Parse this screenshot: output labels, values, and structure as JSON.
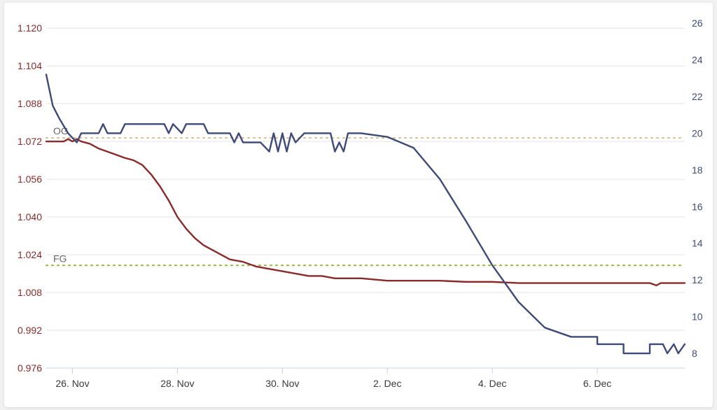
{
  "chart_data": {
    "type": "line",
    "x_axis": {
      "type": "date",
      "range": [
        "2023-11-25T12:00",
        "2023-12-07T16:00"
      ],
      "tick_labels": [
        "26. Nov",
        "28. Nov",
        "30. Nov",
        "2. Dec",
        "4. Dec",
        "6. Dec"
      ],
      "tick_dates": [
        "2023-11-26",
        "2023-11-28",
        "2023-11-30",
        "2023-12-02",
        "2023-12-04",
        "2023-12-06"
      ]
    },
    "y_left": {
      "range": [
        0.976,
        1.126
      ],
      "ticks": [
        "0.976",
        "0.992",
        "1.008",
        "1.024",
        "1.040",
        "1.056",
        "1.072",
        "1.088",
        "1.104",
        "1.120"
      ],
      "color": "#8b2a2a"
    },
    "y_right": {
      "range": [
        7.2,
        26.5
      ],
      "ticks": [
        "8",
        "10",
        "12",
        "14",
        "16",
        "18",
        "20",
        "22",
        "24",
        "26"
      ],
      "color": "#3f4a78"
    },
    "grid": true,
    "annotations": [
      {
        "label": "OG",
        "value": 1.0735,
        "axis": "left",
        "color": "#d4b98a"
      },
      {
        "label": "FG",
        "value": 1.0195,
        "axis": "left",
        "color": "#8fae3c"
      }
    ],
    "series": [
      {
        "axis": "left",
        "color": "#8b2a2a",
        "points": [
          [
            "2023-11-25T12:00",
            1.072
          ],
          [
            "2023-11-25T20:00",
            1.072
          ],
          [
            "2023-11-25T22:00",
            1.073
          ],
          [
            "2023-11-26T00:00",
            1.072
          ],
          [
            "2023-11-26T02:00",
            1.073
          ],
          [
            "2023-11-26T04:00",
            1.072
          ],
          [
            "2023-11-26T08:00",
            1.071
          ],
          [
            "2023-11-26T12:00",
            1.069
          ],
          [
            "2023-11-26T18:00",
            1.067
          ],
          [
            "2023-11-27T00:00",
            1.065
          ],
          [
            "2023-11-27T04:00",
            1.064
          ],
          [
            "2023-11-27T08:00",
            1.062
          ],
          [
            "2023-11-27T12:00",
            1.058
          ],
          [
            "2023-11-27T16:00",
            1.053
          ],
          [
            "2023-11-27T20:00",
            1.047
          ],
          [
            "2023-11-28T00:00",
            1.04
          ],
          [
            "2023-11-28T04:00",
            1.035
          ],
          [
            "2023-11-28T08:00",
            1.031
          ],
          [
            "2023-11-28T12:00",
            1.028
          ],
          [
            "2023-11-28T16:00",
            1.026
          ],
          [
            "2023-11-28T20:00",
            1.024
          ],
          [
            "2023-11-29T00:00",
            1.022
          ],
          [
            "2023-11-29T06:00",
            1.021
          ],
          [
            "2023-11-29T12:00",
            1.019
          ],
          [
            "2023-11-29T18:00",
            1.018
          ],
          [
            "2023-11-30T00:00",
            1.017
          ],
          [
            "2023-11-30T06:00",
            1.016
          ],
          [
            "2023-11-30T12:00",
            1.015
          ],
          [
            "2023-11-30T18:00",
            1.015
          ],
          [
            "2023-12-01T00:00",
            1.014
          ],
          [
            "2023-12-01T12:00",
            1.014
          ],
          [
            "2023-12-02T00:00",
            1.013
          ],
          [
            "2023-12-02T12:00",
            1.013
          ],
          [
            "2023-12-03T00:00",
            1.013
          ],
          [
            "2023-12-03T12:00",
            1.0125
          ],
          [
            "2023-12-04T00:00",
            1.0125
          ],
          [
            "2023-12-04T12:00",
            1.012
          ],
          [
            "2023-12-05T00:00",
            1.012
          ],
          [
            "2023-12-05T12:00",
            1.012
          ],
          [
            "2023-12-06T00:00",
            1.012
          ],
          [
            "2023-12-06T12:00",
            1.012
          ],
          [
            "2023-12-07T00:00",
            1.012
          ],
          [
            "2023-12-07T03:00",
            1.011
          ],
          [
            "2023-12-07T05:00",
            1.012
          ],
          [
            "2023-12-07T16:00",
            1.012
          ]
        ]
      },
      {
        "axis": "right",
        "color": "#3f4a78",
        "points": [
          [
            "2023-11-25T12:00",
            23.2
          ],
          [
            "2023-11-25T15:00",
            21.5
          ],
          [
            "2023-11-25T18:00",
            20.8
          ],
          [
            "2023-11-25T22:00",
            20.0
          ],
          [
            "2023-11-26T02:00",
            19.5
          ],
          [
            "2023-11-26T04:00",
            20.0
          ],
          [
            "2023-11-26T12:00",
            20.0
          ],
          [
            "2023-11-26T14:00",
            20.5
          ],
          [
            "2023-11-26T16:00",
            20.0
          ],
          [
            "2023-11-26T22:00",
            20.0
          ],
          [
            "2023-11-27T00:00",
            20.5
          ],
          [
            "2023-11-27T18:00",
            20.5
          ],
          [
            "2023-11-27T20:00",
            20.0
          ],
          [
            "2023-11-27T22:00",
            20.5
          ],
          [
            "2023-11-28T02:00",
            20.0
          ],
          [
            "2023-11-28T04:00",
            20.5
          ],
          [
            "2023-11-28T12:00",
            20.5
          ],
          [
            "2023-11-28T14:00",
            20.0
          ],
          [
            "2023-11-29T00:00",
            20.0
          ],
          [
            "2023-11-29T02:00",
            19.5
          ],
          [
            "2023-11-29T04:00",
            20.0
          ],
          [
            "2023-11-29T06:00",
            19.5
          ],
          [
            "2023-11-29T10:00",
            19.5
          ],
          [
            "2023-11-29T14:00",
            19.5
          ],
          [
            "2023-11-29T18:00",
            19.0
          ],
          [
            "2023-11-29T20:00",
            20.0
          ],
          [
            "2023-11-29T22:00",
            19.0
          ],
          [
            "2023-11-30T00:00",
            20.0
          ],
          [
            "2023-11-30T02:00",
            19.0
          ],
          [
            "2023-11-30T04:00",
            20.0
          ],
          [
            "2023-11-30T06:00",
            19.5
          ],
          [
            "2023-11-30T10:00",
            20.0
          ],
          [
            "2023-11-30T18:00",
            20.0
          ],
          [
            "2023-11-30T22:00",
            20.0
          ],
          [
            "2023-12-01T00:00",
            19.0
          ],
          [
            "2023-12-01T02:00",
            19.5
          ],
          [
            "2023-12-01T04:00",
            19.0
          ],
          [
            "2023-12-01T06:00",
            20.0
          ],
          [
            "2023-12-01T12:00",
            20.0
          ],
          [
            "2023-12-02T00:00",
            19.8
          ],
          [
            "2023-12-02T12:00",
            19.2
          ],
          [
            "2023-12-03T00:00",
            17.5
          ],
          [
            "2023-12-03T12:00",
            15.2
          ],
          [
            "2023-12-04T00:00",
            12.8
          ],
          [
            "2023-12-04T12:00",
            10.8
          ],
          [
            "2023-12-05T00:00",
            9.4
          ],
          [
            "2023-12-05T12:00",
            8.9
          ],
          [
            "2023-12-06T00:00",
            8.9
          ],
          [
            "2023-12-06T00:00",
            8.5
          ],
          [
            "2023-12-06T12:00",
            8.5
          ],
          [
            "2023-12-06T12:00",
            8.0
          ],
          [
            "2023-12-07T00:00",
            8.0
          ],
          [
            "2023-12-07T00:00",
            8.5
          ],
          [
            "2023-12-07T06:00",
            8.5
          ],
          [
            "2023-12-07T08:00",
            8.0
          ],
          [
            "2023-12-07T11:00",
            8.5
          ],
          [
            "2023-12-07T13:00",
            8.0
          ],
          [
            "2023-12-07T16:00",
            8.5
          ]
        ]
      }
    ]
  }
}
